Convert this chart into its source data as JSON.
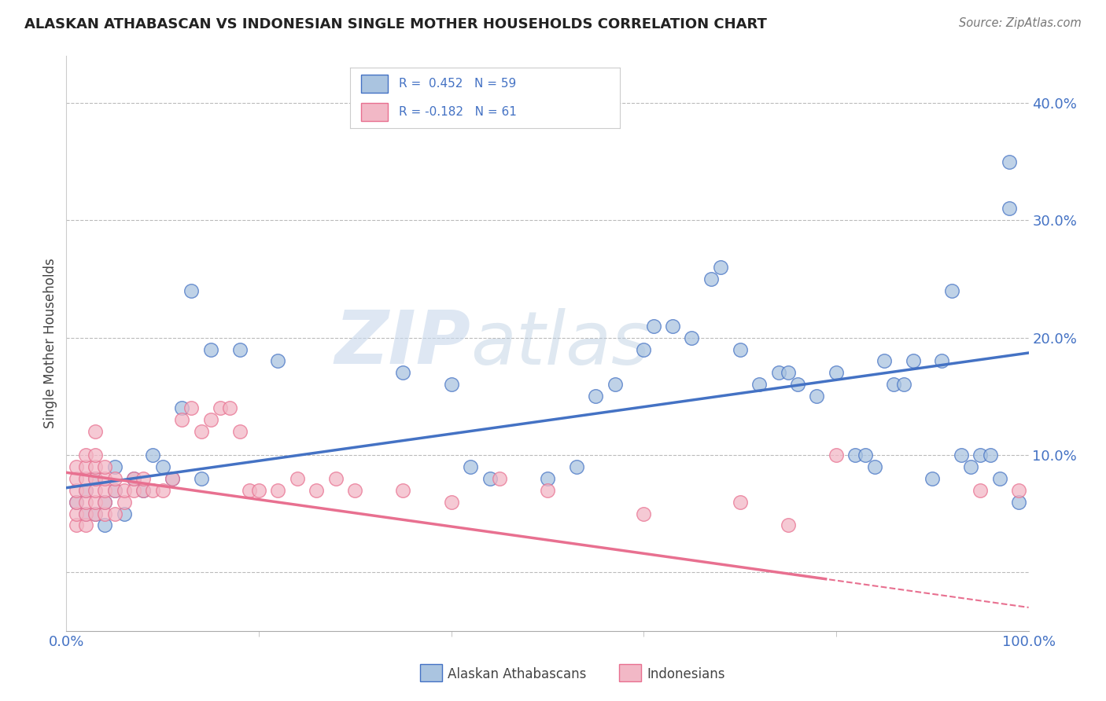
{
  "title": "ALASKAN ATHABASCAN VS INDONESIAN SINGLE MOTHER HOUSEHOLDS CORRELATION CHART",
  "source": "Source: ZipAtlas.com",
  "ylabel": "Single Mother Households",
  "xlim": [
    0.0,
    1.0
  ],
  "ylim": [
    -0.05,
    0.44
  ],
  "yticks": [
    0.0,
    0.1,
    0.2,
    0.3,
    0.4
  ],
  "ytick_labels": [
    "",
    "10.0%",
    "20.0%",
    "30.0%",
    "40.0%"
  ],
  "xtick_labels": [
    "0.0%",
    "100.0%"
  ],
  "blue_color": "#aac4e0",
  "pink_color": "#f2b8c6",
  "blue_line_color": "#4472c4",
  "pink_line_color": "#e87090",
  "watermark_zip": "ZIP",
  "watermark_atlas": "atlas",
  "blue_scatter": [
    [
      0.01,
      0.06
    ],
    [
      0.02,
      0.05
    ],
    [
      0.02,
      0.07
    ],
    [
      0.03,
      0.05
    ],
    [
      0.03,
      0.08
    ],
    [
      0.04,
      0.04
    ],
    [
      0.04,
      0.06
    ],
    [
      0.05,
      0.07
    ],
    [
      0.05,
      0.09
    ],
    [
      0.06,
      0.05
    ],
    [
      0.07,
      0.08
    ],
    [
      0.08,
      0.07
    ],
    [
      0.09,
      0.1
    ],
    [
      0.1,
      0.09
    ],
    [
      0.11,
      0.08
    ],
    [
      0.12,
      0.14
    ],
    [
      0.13,
      0.24
    ],
    [
      0.14,
      0.08
    ],
    [
      0.15,
      0.19
    ],
    [
      0.18,
      0.19
    ],
    [
      0.22,
      0.18
    ],
    [
      0.35,
      0.17
    ],
    [
      0.4,
      0.16
    ],
    [
      0.42,
      0.09
    ],
    [
      0.44,
      0.08
    ],
    [
      0.5,
      0.08
    ],
    [
      0.53,
      0.09
    ],
    [
      0.55,
      0.15
    ],
    [
      0.57,
      0.16
    ],
    [
      0.6,
      0.19
    ],
    [
      0.61,
      0.21
    ],
    [
      0.63,
      0.21
    ],
    [
      0.65,
      0.2
    ],
    [
      0.67,
      0.25
    ],
    [
      0.68,
      0.26
    ],
    [
      0.7,
      0.19
    ],
    [
      0.72,
      0.16
    ],
    [
      0.74,
      0.17
    ],
    [
      0.75,
      0.17
    ],
    [
      0.76,
      0.16
    ],
    [
      0.78,
      0.15
    ],
    [
      0.8,
      0.17
    ],
    [
      0.82,
      0.1
    ],
    [
      0.83,
      0.1
    ],
    [
      0.84,
      0.09
    ],
    [
      0.85,
      0.18
    ],
    [
      0.86,
      0.16
    ],
    [
      0.87,
      0.16
    ],
    [
      0.88,
      0.18
    ],
    [
      0.9,
      0.08
    ],
    [
      0.91,
      0.18
    ],
    [
      0.92,
      0.24
    ],
    [
      0.93,
      0.1
    ],
    [
      0.94,
      0.09
    ],
    [
      0.95,
      0.1
    ],
    [
      0.96,
      0.1
    ],
    [
      0.97,
      0.08
    ],
    [
      0.98,
      0.35
    ],
    [
      0.98,
      0.31
    ],
    [
      0.99,
      0.06
    ]
  ],
  "pink_scatter": [
    [
      0.01,
      0.04
    ],
    [
      0.01,
      0.05
    ],
    [
      0.01,
      0.06
    ],
    [
      0.01,
      0.07
    ],
    [
      0.01,
      0.08
    ],
    [
      0.01,
      0.09
    ],
    [
      0.02,
      0.04
    ],
    [
      0.02,
      0.05
    ],
    [
      0.02,
      0.06
    ],
    [
      0.02,
      0.07
    ],
    [
      0.02,
      0.08
    ],
    [
      0.02,
      0.09
    ],
    [
      0.02,
      0.1
    ],
    [
      0.03,
      0.05
    ],
    [
      0.03,
      0.06
    ],
    [
      0.03,
      0.07
    ],
    [
      0.03,
      0.08
    ],
    [
      0.03,
      0.09
    ],
    [
      0.03,
      0.1
    ],
    [
      0.03,
      0.12
    ],
    [
      0.04,
      0.05
    ],
    [
      0.04,
      0.06
    ],
    [
      0.04,
      0.07
    ],
    [
      0.04,
      0.08
    ],
    [
      0.04,
      0.09
    ],
    [
      0.05,
      0.05
    ],
    [
      0.05,
      0.07
    ],
    [
      0.05,
      0.08
    ],
    [
      0.06,
      0.06
    ],
    [
      0.06,
      0.07
    ],
    [
      0.07,
      0.07
    ],
    [
      0.07,
      0.08
    ],
    [
      0.08,
      0.07
    ],
    [
      0.08,
      0.08
    ],
    [
      0.09,
      0.07
    ],
    [
      0.1,
      0.07
    ],
    [
      0.11,
      0.08
    ],
    [
      0.12,
      0.13
    ],
    [
      0.13,
      0.14
    ],
    [
      0.14,
      0.12
    ],
    [
      0.15,
      0.13
    ],
    [
      0.16,
      0.14
    ],
    [
      0.17,
      0.14
    ],
    [
      0.18,
      0.12
    ],
    [
      0.19,
      0.07
    ],
    [
      0.2,
      0.07
    ],
    [
      0.22,
      0.07
    ],
    [
      0.24,
      0.08
    ],
    [
      0.26,
      0.07
    ],
    [
      0.28,
      0.08
    ],
    [
      0.3,
      0.07
    ],
    [
      0.35,
      0.07
    ],
    [
      0.4,
      0.06
    ],
    [
      0.45,
      0.08
    ],
    [
      0.5,
      0.07
    ],
    [
      0.6,
      0.05
    ],
    [
      0.7,
      0.06
    ],
    [
      0.75,
      0.04
    ],
    [
      0.8,
      0.1
    ],
    [
      0.95,
      0.07
    ],
    [
      0.99,
      0.07
    ]
  ],
  "blue_trend": [
    0.072,
    0.187
  ],
  "pink_trend": [
    0.085,
    -0.03
  ]
}
